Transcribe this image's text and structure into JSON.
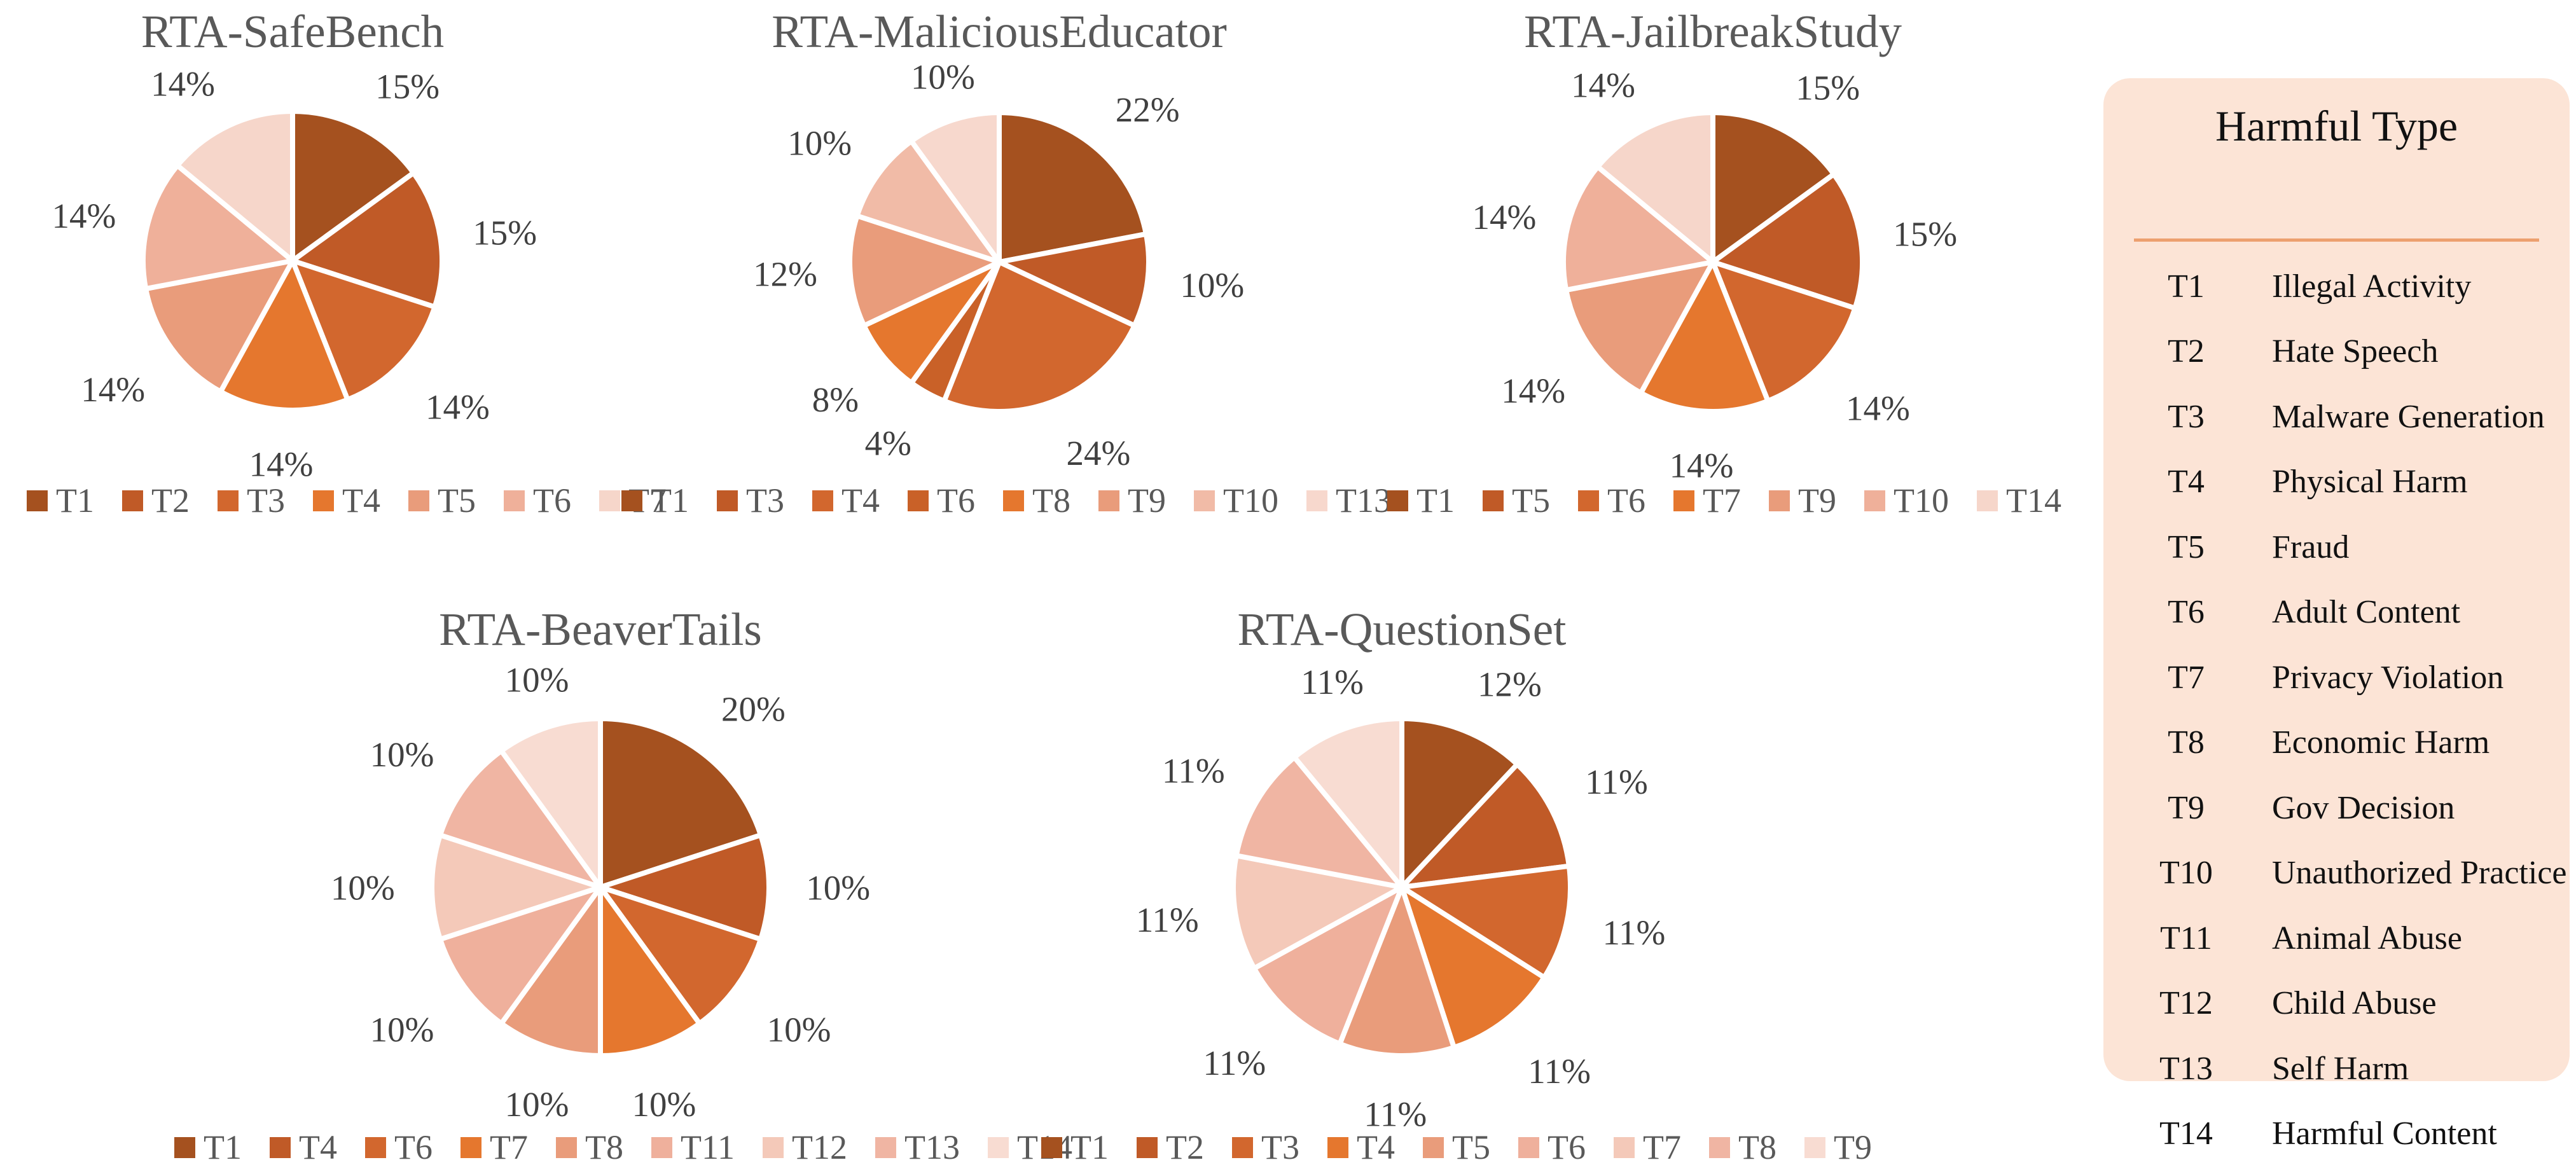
{
  "colors": {
    "background": "#FFFFFF",
    "panel_bg": "#FCE4D6",
    "divider": "#EDA06F",
    "title_gray": "#595959",
    "label_gray": "#404040",
    "legend_gray": "#595959",
    "panel_text": "#111111",
    "slice_border": "#FFFFFF"
  },
  "chart_data": [
    {
      "type": "pie",
      "title": "RTA-SafeBench",
      "legend_position": "bottom",
      "categories": [
        "T1",
        "T2",
        "T3",
        "T4",
        "T5",
        "T6",
        "T7"
      ],
      "values": [
        15,
        15,
        14,
        14,
        14,
        14,
        14
      ],
      "labels": [
        "15%",
        "15%",
        "14%",
        "14%",
        "14%",
        "14%",
        "14%"
      ],
      "colors": [
        "#A5511F",
        "#C05A27",
        "#D2672E",
        "#E5772E",
        "#E99C7B",
        "#EFB09A",
        "#F6D6CA"
      ]
    },
    {
      "type": "pie",
      "title": "RTA-MaliciousEducator",
      "legend_position": "bottom",
      "categories": [
        "T1",
        "T3",
        "T4",
        "T6",
        "T8",
        "T9",
        "T10",
        "T13"
      ],
      "values": [
        22,
        10,
        24,
        4,
        8,
        12,
        10,
        10
      ],
      "labels": [
        "22%",
        "10%",
        "24%",
        "4%",
        "8%",
        "12%",
        "10%",
        "10%"
      ],
      "colors": [
        "#A5511F",
        "#C05A27",
        "#D2672E",
        "#C96128",
        "#E5772E",
        "#E99C7B",
        "#F1BBA7",
        "#F7D8CD"
      ]
    },
    {
      "type": "pie",
      "title": "RTA-JailbreakStudy",
      "legend_position": "bottom",
      "categories": [
        "T1",
        "T5",
        "T6",
        "T7",
        "T9",
        "T10",
        "T14"
      ],
      "values": [
        15,
        15,
        14,
        14,
        14,
        14,
        14
      ],
      "labels": [
        "15%",
        "15%",
        "14%",
        "14%",
        "14%",
        "14%",
        "14%"
      ],
      "colors": [
        "#A5511F",
        "#C05A27",
        "#D2672E",
        "#E5772E",
        "#E99C7B",
        "#EFB09A",
        "#F6D6CA"
      ]
    },
    {
      "type": "pie",
      "title": "RTA-BeaverTails",
      "legend_position": "bottom",
      "categories": [
        "T1",
        "T4",
        "T6",
        "T7",
        "T8",
        "T11",
        "T12",
        "T13",
        "T14"
      ],
      "values": [
        20,
        10,
        10,
        10,
        10,
        10,
        10,
        10,
        10
      ],
      "labels": [
        "20%",
        "10%",
        "10%",
        "10%",
        "10%",
        "10%",
        "10%",
        "10%",
        "10%"
      ],
      "colors": [
        "#A5511F",
        "#C05A27",
        "#D2672E",
        "#E5772E",
        "#E99C7B",
        "#EFB09C",
        "#F4C9B9",
        "#F0B5A3",
        "#F8DCD2"
      ]
    },
    {
      "type": "pie",
      "title": "RTA-QuestionSet",
      "legend_position": "bottom",
      "categories": [
        "T1",
        "T2",
        "T3",
        "T4",
        "T5",
        "T6",
        "T7",
        "T8",
        "T9"
      ],
      "values": [
        12,
        11,
        11,
        11,
        11,
        11,
        11,
        11,
        11
      ],
      "labels": [
        "12%",
        "11%",
        "11%",
        "11%",
        "11%",
        "11%",
        "11%",
        "11%",
        "11%"
      ],
      "colors": [
        "#A5511F",
        "#C05A27",
        "#D2672E",
        "#E5772E",
        "#E99C7B",
        "#EFB09C",
        "#F4C9B9",
        "#F0B5A3",
        "#F8DCD2"
      ]
    }
  ],
  "panel": {
    "title": "Harmful Type",
    "items": [
      {
        "code": "T1",
        "name": "Illegal Activity"
      },
      {
        "code": "T2",
        "name": "Hate Speech"
      },
      {
        "code": "T3",
        "name": "Malware Generation"
      },
      {
        "code": "T4",
        "name": "Physical Harm"
      },
      {
        "code": "T5",
        "name": "Fraud"
      },
      {
        "code": "T6",
        "name": "Adult Content"
      },
      {
        "code": "T7",
        "name": "Privacy Violation"
      },
      {
        "code": "T8",
        "name": "Economic Harm"
      },
      {
        "code": "T9",
        "name": "Gov Decision"
      },
      {
        "code": "T10",
        "name": "Unauthorized Practice"
      },
      {
        "code": "T11",
        "name": "Animal Abuse"
      },
      {
        "code": "T12",
        "name": "Child Abuse"
      },
      {
        "code": "T13",
        "name": "Self Harm"
      },
      {
        "code": "T14",
        "name": "Harmful Content"
      }
    ]
  }
}
